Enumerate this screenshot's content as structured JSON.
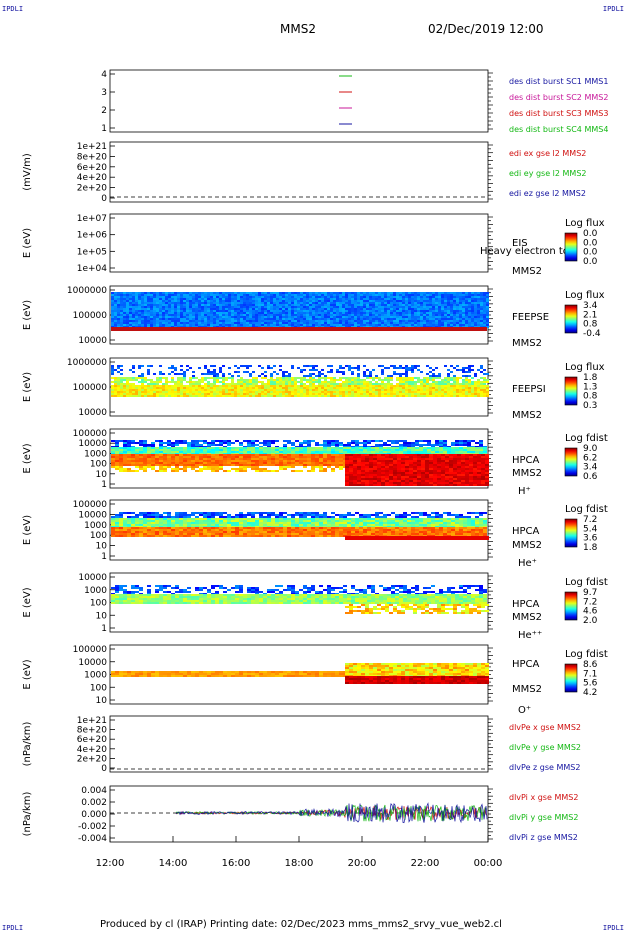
{
  "corner": {
    "tl": "IPDLI",
    "tr": "IPDLI",
    "bl": "IPDLI",
    "br": "IPDLI"
  },
  "header": {
    "spacecraft": "MMS2",
    "datetime": "02/Dec/2019 12:00"
  },
  "footer": "Produced by cl (IRAP)    Printing date: 02/Dec/2023    mms_mms2_srvy_vue_web2.cl",
  "colors": {
    "mms1": "#1515a0",
    "mms2": "#c8189a",
    "mms3": "#d01010",
    "mms4": "#14b814"
  },
  "chart_data": {
    "type": "multi-panel",
    "x_ticks": [
      "12:00",
      "14:00",
      "16:00",
      "18:00",
      "20:00",
      "22:00",
      "00:00"
    ],
    "panels": [
      {
        "id": "p1",
        "type": "scatter",
        "y_ticks": [
          "4",
          "3",
          "2",
          "1"
        ],
        "ylabel": "",
        "legend": [
          {
            "text": "des dist burst SC1 MMS1",
            "color": "#1515a0"
          },
          {
            "text": "des dist burst SC2 MMS2",
            "color": "#c8189a"
          },
          {
            "text": "des dist burst SC3 MMS3",
            "color": "#d01010"
          },
          {
            "text": "des dist burst SC4 MMS4",
            "color": "#14b814"
          }
        ]
      },
      {
        "id": "p2",
        "type": "line",
        "y_ticks": [
          "1e+21",
          "8e+20",
          "6e+20",
          "4e+20",
          "2e+20",
          "0"
        ],
        "ylabel": "(mV/m)",
        "legend": [
          {
            "text": "edi ex gse l2 MMS2",
            "color": "#d01010"
          },
          {
            "text": "edi ey gse l2 MMS2",
            "color": "#14b814"
          },
          {
            "text": "edi ez gse l2 MMS2",
            "color": "#1515a0"
          }
        ]
      },
      {
        "id": "p3",
        "type": "heatmap",
        "y_ticks": [
          "1e+07",
          "1e+06",
          "1e+05",
          "1e+04"
        ],
        "ylabel": "E (eV)",
        "inst": [
          "EIS",
          "MMS2"
        ],
        "extra": "Heavy electron to",
        "cb_title": "Log flux",
        "cb": [
          "0.0",
          "0.0",
          "0.0",
          "0.0"
        ]
      },
      {
        "id": "p4",
        "type": "heatmap",
        "y_ticks": [
          "1000000",
          "100000",
          "10000"
        ],
        "ylabel": "E (eV)",
        "inst": [
          "FEEPSE",
          "MMS2"
        ],
        "cb_title": "Log flux",
        "cb": [
          "3.4",
          "2.1",
          "0.8",
          "-0.4"
        ]
      },
      {
        "id": "p5",
        "type": "heatmap",
        "y_ticks": [
          "1000000",
          "100000",
          "10000"
        ],
        "ylabel": "E (eV)",
        "inst": [
          "FEEPSI",
          "MMS2"
        ],
        "cb_title": "Log flux",
        "cb": [
          "1.8",
          "1.3",
          "0.8",
          "0.3"
        ]
      },
      {
        "id": "p6",
        "type": "heatmap",
        "y_ticks": [
          "100000",
          "10000",
          "1000",
          "100",
          "10",
          "1"
        ],
        "ylabel": "E (eV)",
        "inst": [
          "HPCA",
          "MMS2",
          "H⁺"
        ],
        "cb_title": "Log fdist",
        "cb": [
          "9.0",
          "6.2",
          "3.4",
          "0.6"
        ]
      },
      {
        "id": "p7",
        "type": "heatmap",
        "y_ticks": [
          "100000",
          "10000",
          "1000",
          "100",
          "10",
          "1"
        ],
        "ylabel": "E (eV)",
        "inst": [
          "HPCA",
          "MMS2",
          "He⁺"
        ],
        "cb_title": "Log fdist",
        "cb": [
          "7.2",
          "5.4",
          "3.6",
          "1.8"
        ]
      },
      {
        "id": "p8",
        "type": "heatmap",
        "y_ticks": [
          "10000",
          "1000",
          "100",
          "10",
          "1"
        ],
        "ylabel": "E (eV)",
        "inst": [
          "HPCA",
          "MMS2",
          "He⁺⁺"
        ],
        "cb_title": "Log fdist",
        "cb": [
          "9.7",
          "7.2",
          "4.6",
          "2.0"
        ]
      },
      {
        "id": "p9",
        "type": "heatmap",
        "y_ticks": [
          "100000",
          "10000",
          "1000",
          "100",
          "10"
        ],
        "ylabel": "E (eV)",
        "inst": [
          "HPCA",
          "MMS2",
          "O⁺"
        ],
        "cb_title": "Log fdist",
        "cb": [
          "8.6",
          "7.1",
          "5.6",
          "4.2"
        ]
      },
      {
        "id": "p10",
        "type": "line",
        "y_ticks": [
          "1e+21",
          "8e+20",
          "6e+20",
          "4e+20",
          "2e+20",
          "0"
        ],
        "ylabel": "(nPa/km)",
        "legend": [
          {
            "text": "dlvPe x gse MMS2",
            "color": "#d01010"
          },
          {
            "text": "dlvPe y gse MMS2",
            "color": "#14b814"
          },
          {
            "text": "dlvPe z gse MMS2",
            "color": "#1515a0"
          }
        ]
      },
      {
        "id": "p11",
        "type": "line",
        "y_ticks": [
          "0.004",
          "0.002",
          "0.000",
          "-0.002",
          "-0.004"
        ],
        "ylabel": "(nPa/km)",
        "legend": [
          {
            "text": "dlvPi x gse MMS2",
            "color": "#d01010"
          },
          {
            "text": "dlvPi y gse MMS2",
            "color": "#14b814"
          },
          {
            "text": "dlvPi z gse MMS2",
            "color": "#1515a0"
          }
        ]
      }
    ]
  }
}
